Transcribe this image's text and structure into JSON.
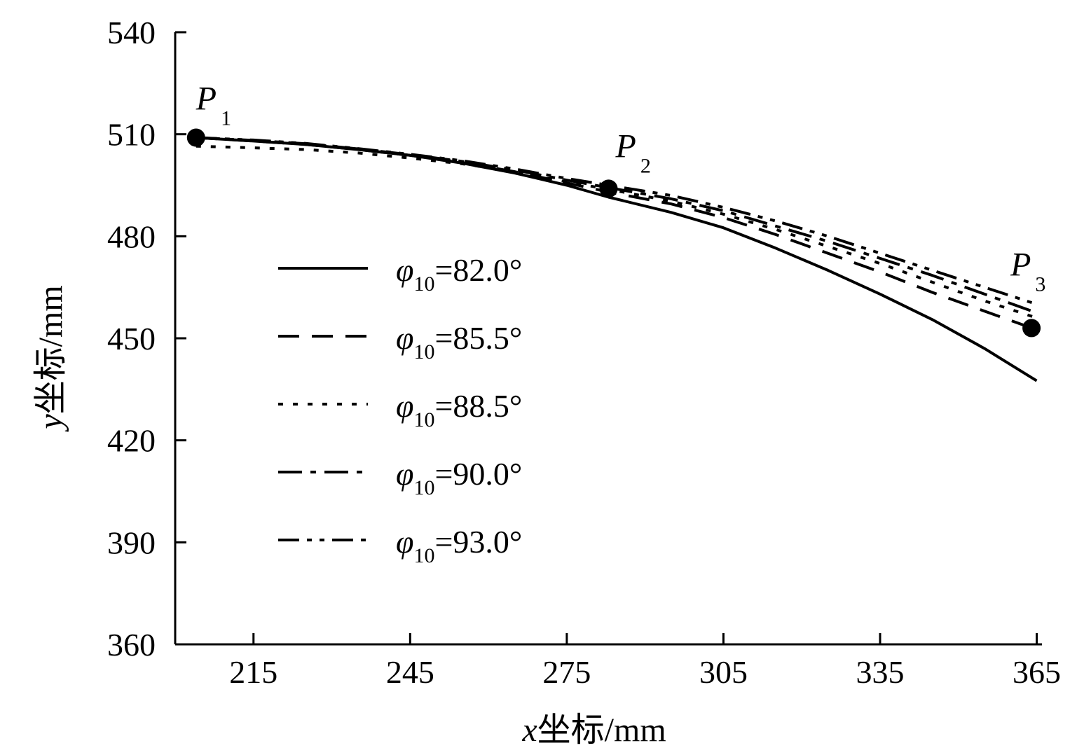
{
  "chart_data": {
    "type": "line",
    "xlabel": {
      "var": "x",
      "rest": "坐标/mm"
    },
    "ylabel": {
      "var": "y",
      "rest": "坐标/mm"
    },
    "xlim": [
      200,
      366
    ],
    "ylim": [
      360,
      540
    ],
    "x_ticks": [
      215,
      245,
      275,
      305,
      335,
      365
    ],
    "y_ticks": [
      360,
      390,
      420,
      450,
      480,
      510,
      540
    ],
    "legend_position": "center-left",
    "grid": false,
    "series": [
      {
        "name": "φ10=82.0°",
        "label": {
          "sym": "φ",
          "sub": "10",
          "val": "=82.0°"
        },
        "dash": "solid",
        "x": [
          204,
          215,
          225,
          235,
          245,
          255,
          265,
          275,
          283,
          295,
          305,
          315,
          325,
          335,
          345,
          355,
          365
        ],
        "y": [
          509.0,
          508.0,
          507.0,
          505.5,
          503.8,
          501.5,
          498.6,
          495.0,
          491.5,
          487.0,
          482.5,
          476.5,
          470.0,
          463.0,
          455.5,
          447.0,
          437.5
        ]
      },
      {
        "name": "φ10=85.5°",
        "label": {
          "sym": "φ",
          "sub": "10",
          "val": "=85.5°"
        },
        "dash": "dashed",
        "x": [
          204,
          215,
          225,
          235,
          245,
          255,
          265,
          275,
          283,
          295,
          305,
          315,
          325,
          335,
          345,
          355,
          365
        ],
        "y": [
          509.0,
          508.0,
          507.0,
          505.5,
          503.8,
          501.7,
          499.0,
          495.7,
          493.0,
          489.5,
          485.5,
          480.5,
          475.0,
          469.5,
          463.5,
          458.0,
          452.5
        ]
      },
      {
        "name": "φ10=88.5°",
        "label": {
          "sym": "φ",
          "sub": "10",
          "val": "=88.5°"
        },
        "dash": "dotted",
        "x": [
          204,
          215,
          225,
          235,
          245,
          255,
          265,
          275,
          283,
          295,
          305,
          315,
          325,
          335,
          345,
          355,
          365
        ],
        "y": [
          506.5,
          506.0,
          505.5,
          504.5,
          503.0,
          501.3,
          499.0,
          496.0,
          493.8,
          490.3,
          486.5,
          482.0,
          477.0,
          472.0,
          466.5,
          461.0,
          456.0
        ]
      },
      {
        "name": "φ10=90.0°",
        "label": {
          "sym": "φ",
          "sub": "10",
          "val": "=90.0°"
        },
        "dash": "dashdot",
        "x": [
          204,
          215,
          225,
          235,
          245,
          255,
          265,
          275,
          283,
          295,
          305,
          315,
          325,
          335,
          345,
          355,
          365
        ],
        "y": [
          509.0,
          508.2,
          507.2,
          505.7,
          504.0,
          502.0,
          499.5,
          496.5,
          494.3,
          491.0,
          487.5,
          483.0,
          478.5,
          473.5,
          468.5,
          463.0,
          457.5
        ]
      },
      {
        "name": "φ10=93.0°",
        "label": {
          "sym": "φ",
          "sub": "10",
          "val": "=93.0°"
        },
        "dash": "dashdotdot",
        "x": [
          204,
          215,
          225,
          235,
          245,
          255,
          265,
          275,
          283,
          295,
          305,
          315,
          325,
          335,
          345,
          355,
          365
        ],
        "y": [
          509.0,
          508.3,
          507.3,
          505.8,
          504.1,
          502.2,
          499.8,
          497.0,
          495.0,
          492.0,
          488.5,
          484.5,
          480.0,
          475.0,
          470.0,
          465.0,
          460.0
        ]
      }
    ],
    "points": [
      {
        "label": "P",
        "sub": "1",
        "x": 204,
        "y": 509.0
      },
      {
        "label": "P",
        "sub": "2",
        "x": 283,
        "y": 494.0
      },
      {
        "label": "P",
        "sub": "3",
        "x": 364,
        "y": 453.0
      }
    ],
    "colors": {
      "line": "#000000",
      "background": "#ffffff"
    }
  }
}
